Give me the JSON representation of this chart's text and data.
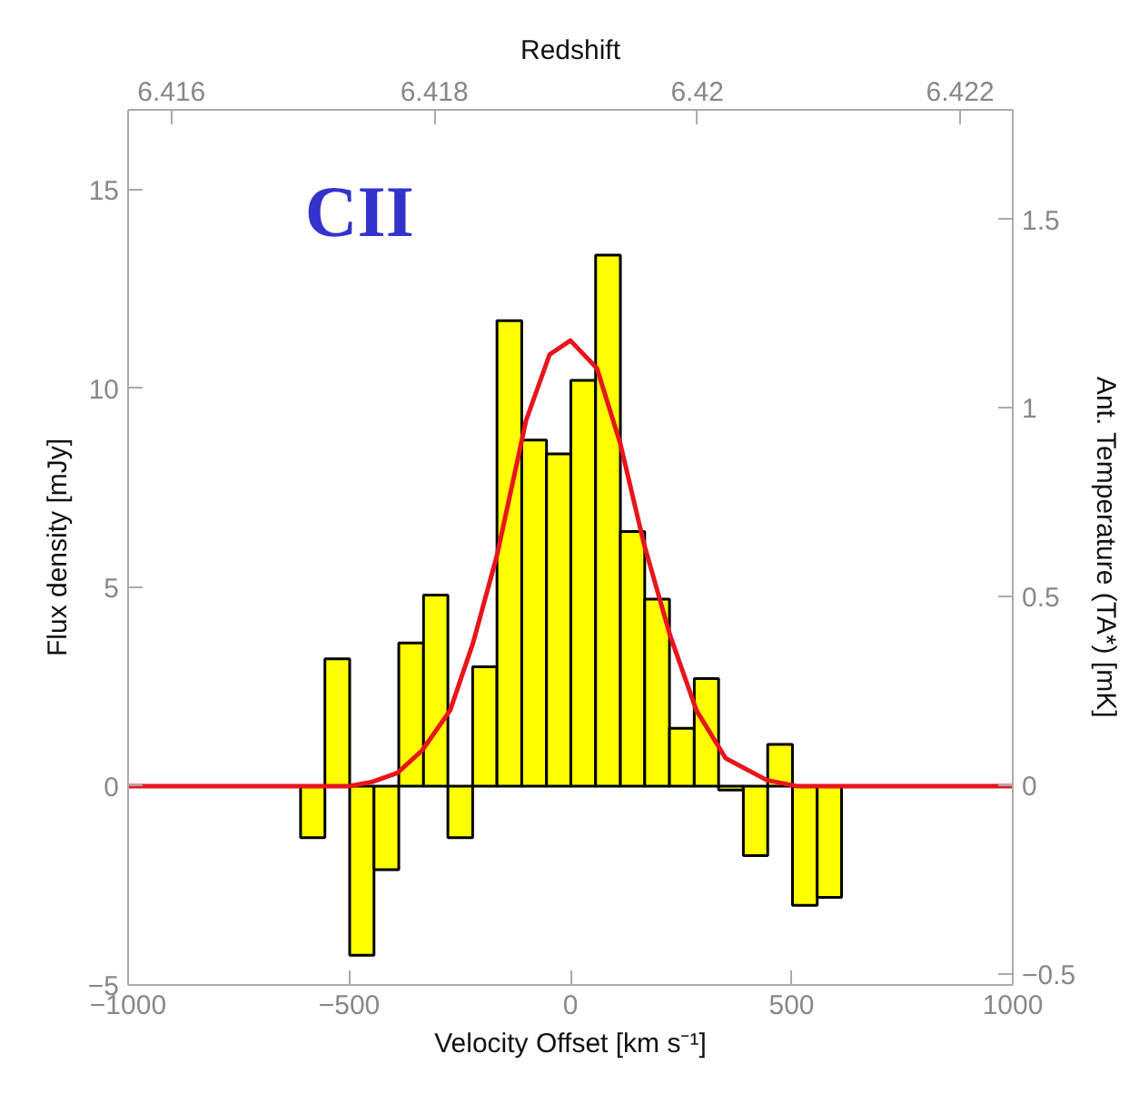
{
  "chart_data": {
    "type": "histogram",
    "xlabel": "Velocity Offset [km s⁻¹]",
    "ylabel": "Flux density [mJy]",
    "y2label": "Ant. Temperature (TA*) [mK]",
    "x2label": "Redshift",
    "annotations": [
      "CII"
    ],
    "bins": [
      -610,
      -555,
      -499,
      -444,
      -388,
      -332,
      -277,
      -221,
      -166,
      -110,
      -54,
      1,
      57,
      113,
      168,
      224,
      280,
      335,
      391,
      446,
      502,
      558,
      613
    ],
    "series": [
      {
        "color": "#ffff00",
        "values": [
          -1.3,
          3.2,
          -4.25,
          -2.1,
          3.6,
          4.8,
          -1.3,
          3.0,
          11.7,
          8.7,
          8.35,
          10.2,
          13.35,
          6.4,
          4.7,
          1.45,
          2.7,
          -0.1,
          -1.75,
          1.05,
          -3.0,
          -2.8
        ]
      },
      {
        "type": "line",
        "color": "#e8151c",
        "x": [
          -1000,
          -500,
          -450,
          -391,
          -335,
          -272,
          -220,
          -166,
          -100,
          -47,
          0,
          60,
          113,
          166,
          225,
          285,
          351,
          444,
          511,
          1000
        ],
        "values": [
          0,
          0,
          0.1,
          0.33,
          0.9,
          1.9,
          3.6,
          5.8,
          9.2,
          10.85,
          11.2,
          10.5,
          8.6,
          6.1,
          3.8,
          1.9,
          0.7,
          0.15,
          0,
          0
        ]
      }
    ],
    "xlim": [
      -1000,
      1000
    ],
    "xticks": [
      -1000,
      -500,
      0,
      500,
      1000
    ],
    "ylim": [
      -5,
      17
    ],
    "yticks": [
      -5,
      0,
      5,
      10,
      15
    ],
    "y2lim": [
      -0.53,
      1.79
    ],
    "y2ticks": [
      -0.5,
      0,
      0.5,
      1,
      1.5
    ],
    "x2lim": [
      6.41567,
      6.4224
    ],
    "x2ticks": [
      6.416,
      6.418,
      6.42,
      6.422
    ],
    "grid": false
  }
}
